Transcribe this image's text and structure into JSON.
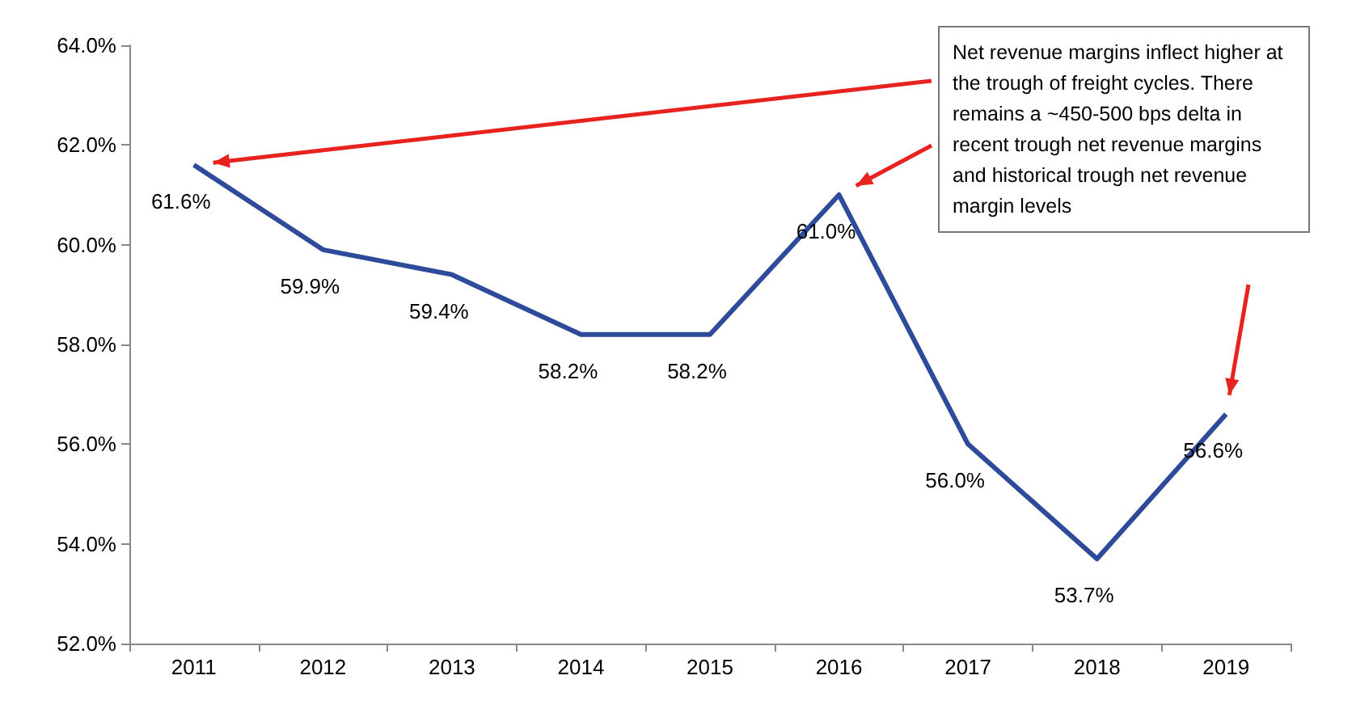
{
  "chart_data": {
    "type": "line",
    "categories": [
      "2011",
      "2012",
      "2013",
      "2014",
      "2015",
      "2016",
      "2017",
      "2018",
      "2019"
    ],
    "series": [
      {
        "color": "#2e4a9a",
        "values": [
          61.6,
          59.9,
          59.4,
          58.2,
          58.2,
          61.0,
          56.0,
          53.7,
          56.6
        ],
        "value_labels": [
          "61.6%",
          "59.9%",
          "59.4%",
          "58.2%",
          "58.2%",
          "61.0%",
          "56.0%",
          "53.7%",
          "56.6%"
        ]
      }
    ],
    "ylim": [
      52,
      64
    ],
    "yticks": [
      {
        "value": 52,
        "label": "52.0%"
      },
      {
        "value": 54,
        "label": "54.0%"
      },
      {
        "value": 56,
        "label": "56.0%"
      },
      {
        "value": 58,
        "label": "58.0%"
      },
      {
        "value": 60,
        "label": "60.0%"
      },
      {
        "value": 62,
        "label": "62.0%"
      },
      {
        "value": 64,
        "label": "64.0%"
      }
    ],
    "annotations": [
      "Net revenue margins inflect higher at the trough of freight cycles. There remains a ~450-500 bps delta in recent trough net revenue margins and historical trough net revenue margin levels"
    ],
    "grid": false,
    "marker": "none",
    "line_style": "solid"
  }
}
